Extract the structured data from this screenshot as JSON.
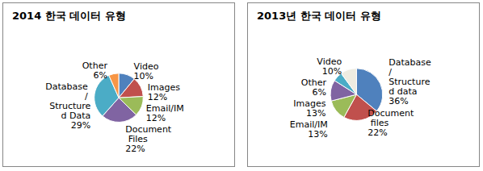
{
  "chart_data": [
    {
      "type": "pie",
      "title": "2014 한국 데이터 유형",
      "categories": [
        "Video",
        "Images",
        "Email/IM",
        "Document Files",
        "Database / Structured Data",
        "Other"
      ],
      "values": [
        10,
        12,
        12,
        22,
        29,
        6
      ],
      "value_labels": [
        "10%",
        "12%",
        "12%",
        "22%",
        "29%",
        "6%"
      ],
      "colors": [
        "#4f81bd",
        "#c0504d",
        "#9bbb59",
        "#8064a2",
        "#4bacc6",
        "#f79646"
      ],
      "data_labels": true
    },
    {
      "type": "pie",
      "title": "2013년 한국 데이터 유형",
      "categories": [
        "Database / Structured data",
        "Document files",
        "Email/IM",
        "Images",
        "Other",
        "Video"
      ],
      "values": [
        36,
        22,
        13,
        13,
        6,
        10
      ],
      "value_labels": [
        "36%",
        "22%",
        "13%",
        "13%",
        "6%",
        "10%"
      ],
      "colors": [
        "#4f81bd",
        "#c0504d",
        "#9bbb59",
        "#8064a2",
        "#4bacc6",
        "#eeece1"
      ],
      "data_labels": true
    }
  ]
}
